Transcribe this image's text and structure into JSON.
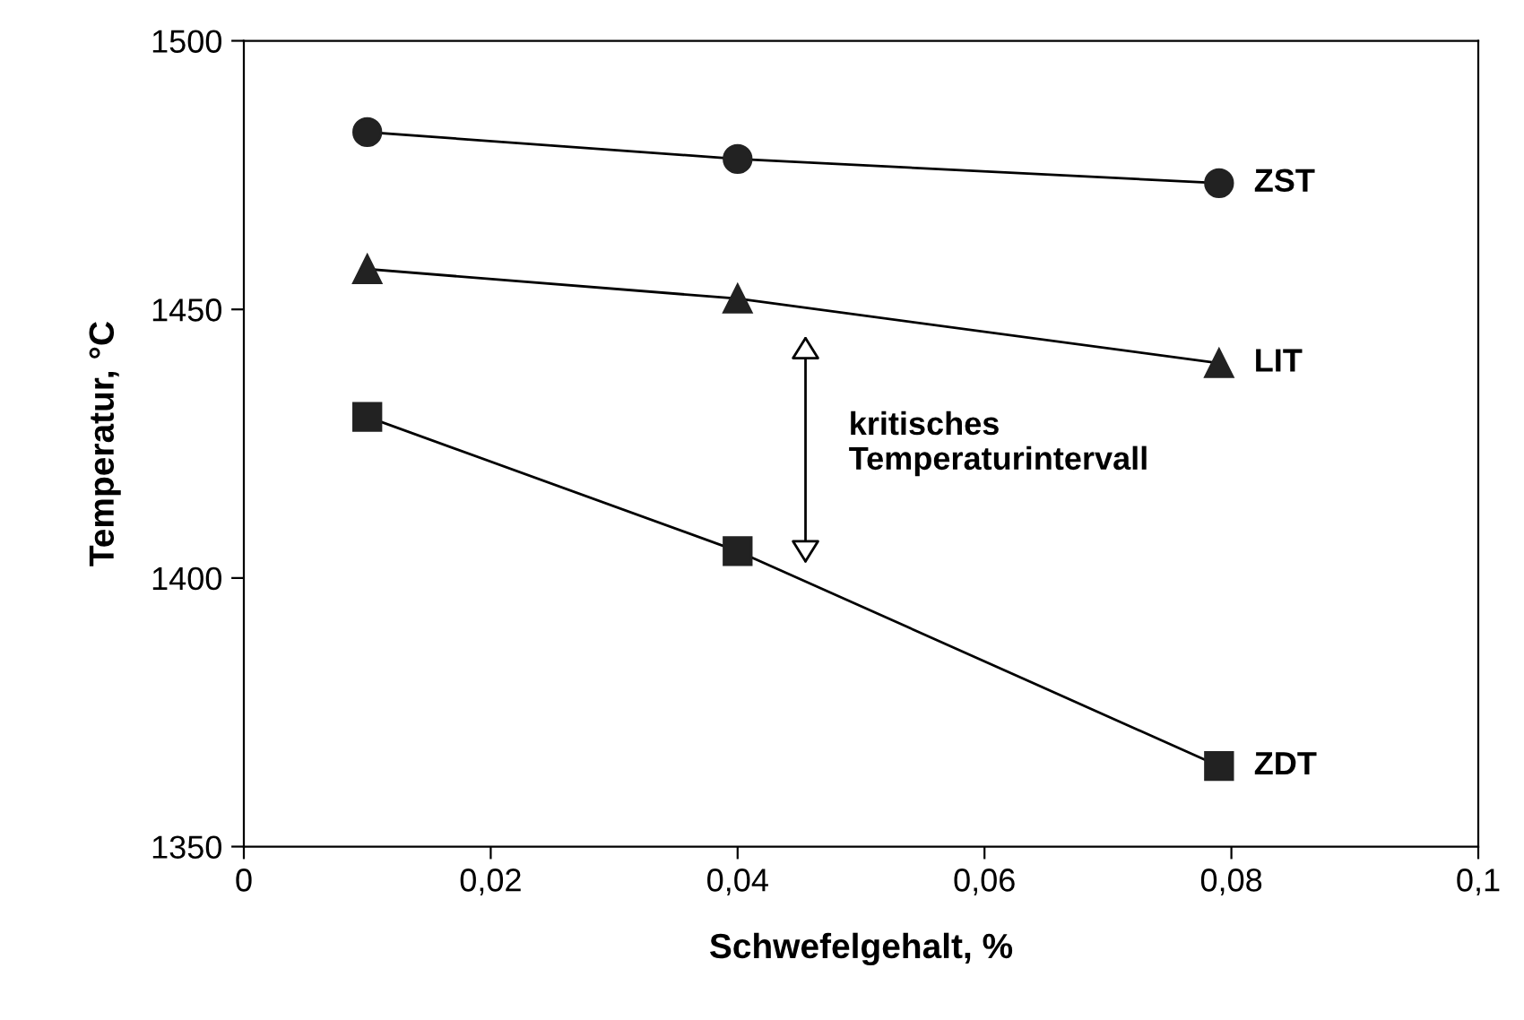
{
  "chart_data": {
    "type": "line",
    "xlabel": "Schwefelgehalt, %",
    "ylabel": "Temperatur, °C",
    "x": [
      0.01,
      0.04,
      0.079
    ],
    "series": [
      {
        "name": "ZST",
        "color": "#222222",
        "marker": "circle",
        "values": [
          1483,
          1478,
          1473.5
        ]
      },
      {
        "name": "LIT",
        "color": "#222222",
        "marker": "triangle",
        "values": [
          1457.5,
          1452,
          1440
        ]
      },
      {
        "name": "ZDT",
        "color": "#222222",
        "marker": "square",
        "values": [
          1430,
          1405,
          1365
        ]
      }
    ],
    "xlim": [
      0,
      0.1
    ],
    "ylim": [
      1350,
      1500
    ],
    "xticks": [
      0,
      {
        "value": 0.02,
        "label": "0,02"
      },
      {
        "value": 0.04,
        "label": "0,04"
      },
      {
        "value": 0.06,
        "label": "0,06"
      },
      {
        "value": 0.08,
        "label": "0,08"
      },
      {
        "value": 0.1,
        "label": "0,1"
      }
    ],
    "yticks": [
      1350,
      1400,
      1450,
      1500
    ],
    "grid": false,
    "legend": false,
    "annotations": [
      "kritisches\nTemperaturintervall"
    ]
  }
}
